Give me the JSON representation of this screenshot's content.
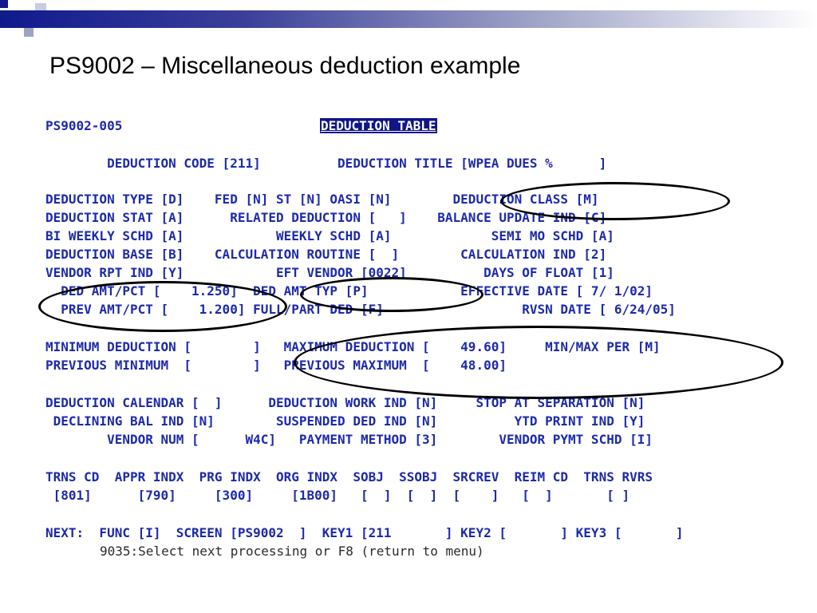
{
  "slide": {
    "title": "PS9002 – Miscellaneous deduction example"
  },
  "screen": {
    "screen_id": "PS9002-005",
    "header": "DEDUCTION TABLE",
    "lines": {
      "l1": "        DEDUCTION CODE [211]          DEDUCTION TITLE [WPEA DUES %      ]",
      "l2": "DEDUCTION TYPE [D]    FED [N] ST [N] OASI [N]        DEDUCTION CLASS [M]",
      "l3": "DEDUCTION STAT [A]      RELATED DEDUCTION [   ]    BALANCE UPDATE IND [C]",
      "l4": "BI WEEKLY SCHD [A]            WEEKLY SCHD [A]             SEMI MO SCHD [A]",
      "l5": "DEDUCTION BASE [B]    CALCULATION ROUTINE [  ]        CALCULATION IND [2]",
      "l6": "VENDOR RPT IND [Y]            EFT VENDOR [0022]          DAYS OF FLOAT [1]",
      "l7": "  DED AMT/PCT [    1.250]  DED AMT TYP [P]            EFFECTIVE DATE [ 7/ 1/02]",
      "l8": "  PREV AMT/PCT [    1.200] FULL/PART DED [F]                  RVSN DATE [ 6/24/05]",
      "l9": "MINIMUM DEDUCTION [        ]   MAXIMUM DEDUCTION [    49.60]     MIN/MAX PER [M]",
      "l10": "PREVIOUS MINIMUM  [        ]   PREVIOUS MAXIMUM  [    48.00]",
      "l11": "DEDUCTION CALENDAR [  ]      DEDUCTION WORK IND [N]     STOP AT SEPARATION [N]",
      "l12": " DECLINING BAL IND [N]        SUSPENDED DED IND [N]          YTD PRINT IND [Y]",
      "l13": "        VENDOR NUM [      W4C]   PAYMENT METHOD [3]        VENDOR PYMT SCHD [I]",
      "l14": "TRNS CD  APPR INDX  PRG INDX  ORG INDX  SOBJ  SSOBJ  SRCREV  REIM CD  TRNS RVRS",
      "l15": " [801]      [790]     [300]     [1B00]   [  ]  [  ]  [    ]   [  ]       [ ]",
      "l16": "NEXT:  FUNC [I]  SCREEN [PS9002  ]  KEY1 [211       ] KEY2 [       ] KEY3 [       ]",
      "message": "9035:Select next processing or F8 (return to menu)"
    }
  }
}
